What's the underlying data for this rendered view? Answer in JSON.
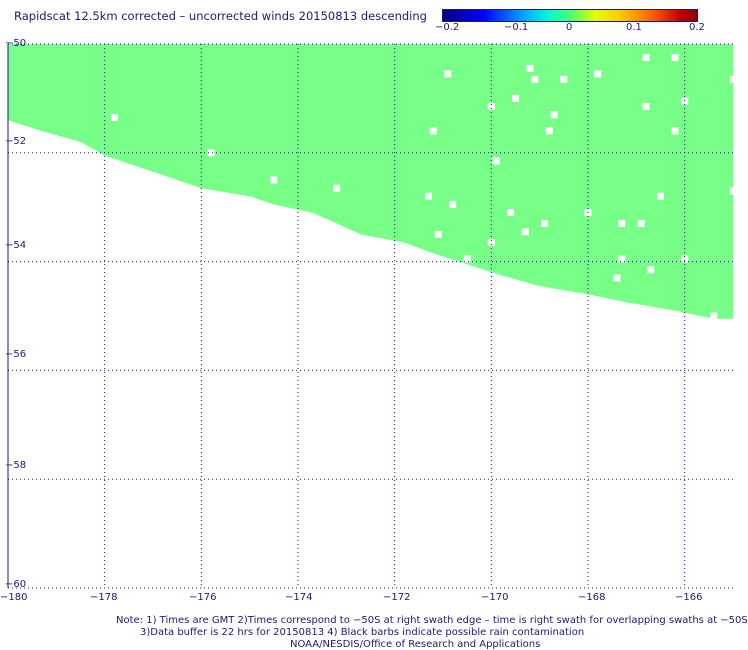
{
  "title": "Rapidscat 12.5km corrected – uncorrected winds 20150813 descending",
  "colorbar": {
    "ticks": [
      "−0.2",
      "−0.1",
      "0",
      "0.1",
      "0.2"
    ],
    "range": [
      -0.2,
      0.2
    ]
  },
  "axes": {
    "lat_labels": [
      "−50",
      "−52",
      "−54",
      "−56",
      "−58",
      "−60"
    ],
    "lon_labels": [
      "−180",
      "−178",
      "−176",
      "−174",
      "−172",
      "−170",
      "−168",
      "−166"
    ],
    "lat_range": [
      -60,
      -50
    ],
    "lon_range": [
      -180,
      -165
    ],
    "grid": "dotted"
  },
  "swath": {
    "fill_color": "#77ff88",
    "difference_value": 0,
    "lower_edge": [
      {
        "lon": -180.0,
        "lat": -51.4
      },
      {
        "lon": -179.3,
        "lat": -51.6
      },
      {
        "lon": -178.5,
        "lat": -51.8
      },
      {
        "lon": -178.0,
        "lat": -52.05
      },
      {
        "lon": -177.5,
        "lat": -52.2
      },
      {
        "lon": -177.0,
        "lat": -52.35
      },
      {
        "lon": -176.5,
        "lat": -52.5
      },
      {
        "lon": -176.0,
        "lat": -52.65
      },
      {
        "lon": -175.0,
        "lat": -52.8
      },
      {
        "lon": -174.5,
        "lat": -52.95
      },
      {
        "lon": -173.7,
        "lat": -53.1
      },
      {
        "lon": -173.2,
        "lat": -53.3
      },
      {
        "lon": -172.7,
        "lat": -53.5
      },
      {
        "lon": -171.8,
        "lat": -53.65
      },
      {
        "lon": -171.2,
        "lat": -53.85
      },
      {
        "lon": -170.5,
        "lat": -54.05
      },
      {
        "lon": -169.8,
        "lat": -54.25
      },
      {
        "lon": -169.0,
        "lat": -54.45
      },
      {
        "lon": -168.0,
        "lat": -54.6
      },
      {
        "lon": -167.2,
        "lat": -54.75
      },
      {
        "lon": -166.2,
        "lat": -54.9
      },
      {
        "lon": -165.4,
        "lat": -55.05
      },
      {
        "lon": -165.0,
        "lat": -55.05
      }
    ],
    "missing_cells": [
      {
        "lon": -177.8,
        "lat": -51.35
      },
      {
        "lon": -175.8,
        "lat": -52.0
      },
      {
        "lon": -174.5,
        "lat": -52.5
      },
      {
        "lon": -173.2,
        "lat": -52.65
      },
      {
        "lon": -171.3,
        "lat": -52.8
      },
      {
        "lon": -170.8,
        "lat": -52.95
      },
      {
        "lon": -171.1,
        "lat": -53.5
      },
      {
        "lon": -170.0,
        "lat": -53.65
      },
      {
        "lon": -170.5,
        "lat": -53.95
      },
      {
        "lon": -169.6,
        "lat": -53.1
      },
      {
        "lon": -169.3,
        "lat": -53.45
      },
      {
        "lon": -168.9,
        "lat": -53.3
      },
      {
        "lon": -168.0,
        "lat": -53.1
      },
      {
        "lon": -167.3,
        "lat": -53.3
      },
      {
        "lon": -166.9,
        "lat": -53.3
      },
      {
        "lon": -167.3,
        "lat": -53.95
      },
      {
        "lon": -166.7,
        "lat": -54.15
      },
      {
        "lon": -166.0,
        "lat": -53.95
      },
      {
        "lon": -166.5,
        "lat": -52.8
      },
      {
        "lon": -167.4,
        "lat": -54.3
      },
      {
        "lon": -170.9,
        "lat": -50.55
      },
      {
        "lon": -170.0,
        "lat": -51.15
      },
      {
        "lon": -169.5,
        "lat": -51.0
      },
      {
        "lon": -169.2,
        "lat": -50.45
      },
      {
        "lon": -169.1,
        "lat": -50.65
      },
      {
        "lon": -168.5,
        "lat": -50.65
      },
      {
        "lon": -167.8,
        "lat": -50.55
      },
      {
        "lon": -166.8,
        "lat": -50.25
      },
      {
        "lon": -166.2,
        "lat": -50.25
      },
      {
        "lon": -165.0,
        "lat": -50.65
      },
      {
        "lon": -166.0,
        "lat": -51.05
      },
      {
        "lon": -166.8,
        "lat": -51.15
      },
      {
        "lon": -168.7,
        "lat": -51.3
      },
      {
        "lon": -168.8,
        "lat": -51.6
      },
      {
        "lon": -171.2,
        "lat": -51.6
      },
      {
        "lon": -166.2,
        "lat": -51.6
      },
      {
        "lon": -169.9,
        "lat": -52.15
      },
      {
        "lon": -165.0,
        "lat": -52.7
      },
      {
        "lon": -165.4,
        "lat": -55.0
      }
    ]
  },
  "notes": [
    "Note: 1) Times are GMT 2)Times correspond to −50S at right swath edge – time is right swath for overlapping swaths at −50S",
    "3)Data buffer is 22 hrs for 20150813 4) Black barbs indicate possible rain contamination",
    "NOAA/NESDIS/Office of Research and Applications"
  ]
}
